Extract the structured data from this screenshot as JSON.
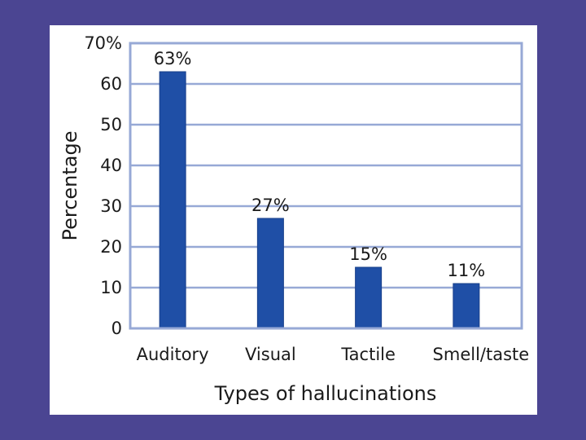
{
  "chart_data": {
    "type": "bar",
    "categories": [
      "Auditory",
      "Visual",
      "Tactile",
      "Smell/taste"
    ],
    "values": [
      63,
      27,
      15,
      11
    ],
    "data_labels": [
      "63%",
      "27%",
      "15%",
      "11%"
    ],
    "yticks": [
      "0",
      "10",
      "20",
      "30",
      "40",
      "50",
      "60",
      "70%"
    ],
    "ylim": [
      0,
      70
    ],
    "xlabel": "Types of hallucinations",
    "ylabel": "Percentage",
    "grid": true,
    "legend": "none",
    "colors": {
      "background": "#4b4592",
      "panel": "#ffffff",
      "bar": "#1f4fa6",
      "bar_edge": "#173f8a",
      "grid": "#97a9d6",
      "frame": "#97a9d6"
    }
  }
}
